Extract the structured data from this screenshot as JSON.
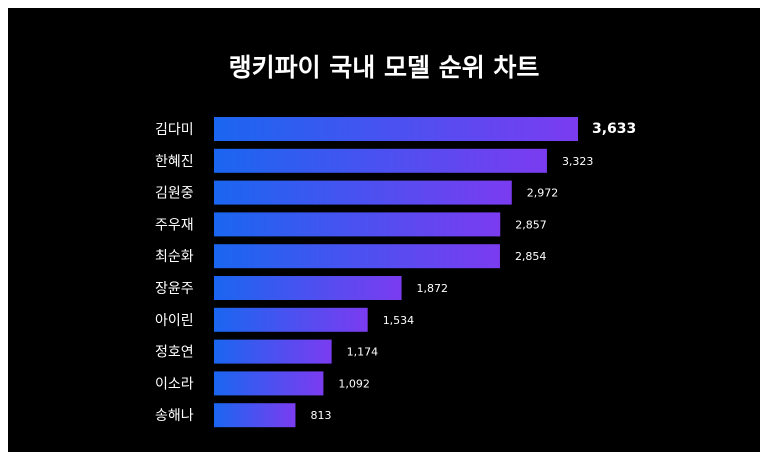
{
  "chart_data": {
    "type": "bar",
    "orientation": "horizontal",
    "title": "랭키파이 국내 모델 순위 차트",
    "categories": [
      "김다미",
      "한혜진",
      "김원중",
      "주우재",
      "최순화",
      "장윤주",
      "아이린",
      "정호연",
      "이소라",
      "송해나"
    ],
    "values": [
      3633,
      3323,
      2972,
      2857,
      2854,
      1872,
      1534,
      1174,
      1092,
      813
    ],
    "value_labels": [
      "3,633",
      "3,323",
      "2,972",
      "2,857",
      "2,854",
      "1,872",
      "1,534",
      "1,174",
      "1,092",
      "813"
    ],
    "xlabel": "",
    "ylabel": "",
    "xlim": [
      0,
      3633
    ],
    "grid": false,
    "colors": {
      "background": "#000000",
      "bar_start": "#1a66f0",
      "bar_end": "#7b3cf0",
      "text": "#ffffff"
    }
  }
}
